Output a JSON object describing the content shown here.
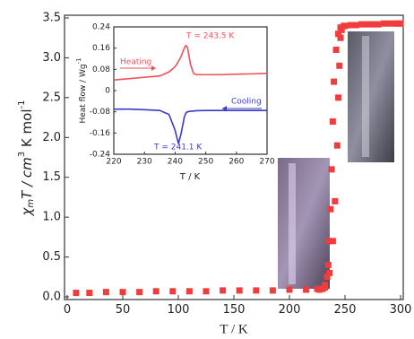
{
  "chart_data": [
    {
      "type": "scatter",
      "y_label": [
        "χ",
        "m",
        "T / cm",
        "3",
        " K mol",
        "-1"
      ],
      "x_label": "T / K",
      "xlim": [
        0,
        300
      ],
      "xticks": [
        0,
        50,
        100,
        150,
        200,
        250,
        300
      ],
      "ylim": [
        0,
        3.5
      ],
      "yticks": [
        {
          "value": 0,
          "label": "0.0"
        },
        {
          "value": 0.5,
          "label": "0.5"
        },
        {
          "value": 1,
          "label": "1.0"
        },
        {
          "value": 1.5,
          "label": "1.5"
        },
        {
          "value": 2,
          "label": "2.0"
        },
        {
          "value": 2.5,
          "label": "2.5"
        },
        {
          "value": 3,
          "label": "3.0"
        },
        {
          "value": 3.5,
          "label": "3.5"
        }
      ],
      "series": [
        {
          "color": "#f03c3c",
          "x": [
            8,
            20,
            35,
            50,
            65,
            80,
            95,
            110,
            125,
            140,
            155,
            170,
            185,
            200,
            215,
            225,
            232,
            236,
            239,
            241,
            243,
            244,
            245,
            246,
            247,
            249,
            255,
            265,
            275,
            285,
            295,
            300
          ],
          "values": [
            0.05,
            0.05,
            0.06,
            0.06,
            0.06,
            0.07,
            0.07,
            0.07,
            0.07,
            0.08,
            0.08,
            0.08,
            0.08,
            0.09,
            0.09,
            0.1,
            0.12,
            0.3,
            0.7,
            1.2,
            1.9,
            2.5,
            2.9,
            3.25,
            3.35,
            3.4,
            3.41,
            3.42,
            3.42,
            3.43,
            3.43,
            3.43
          ]
        },
        {
          "color": "#f03c3c",
          "x": [
            298,
            290,
            280,
            270,
            260,
            250,
            246,
            244,
            242,
            240,
            239,
            238,
            237,
            236,
            235,
            234,
            232,
            230,
            227
          ],
          "values": [
            3.43,
            3.43,
            3.42,
            3.42,
            3.41,
            3.4,
            3.38,
            3.3,
            3.1,
            2.7,
            2.2,
            1.6,
            1.1,
            0.7,
            0.4,
            0.25,
            0.15,
            0.1,
            0.09
          ]
        }
      ]
    },
    {
      "type": "line",
      "y_label": [
        "Heat flow / Wg",
        "-1"
      ],
      "x_label": "T / K",
      "xlim": [
        220,
        270
      ],
      "xticks": [
        220,
        230,
        240,
        250,
        260,
        270
      ],
      "ylim": [
        -0.24,
        0.24
      ],
      "yticks": [
        -0.24,
        -0.16,
        -0.08,
        0,
        0.08,
        0.16,
        0.24
      ],
      "x": [
        220,
        225,
        230,
        235,
        238,
        240,
        241.1,
        242,
        243,
        243.5,
        244,
        245,
        246,
        247,
        250,
        255,
        260,
        265,
        270
      ],
      "series": [
        {
          "name": "Heating",
          "color": "#f0505a",
          "values": [
            0.04,
            0.045,
            0.05,
            0.055,
            0.07,
            0.09,
            0.11,
            0.13,
            0.16,
            0.17,
            0.165,
            0.1,
            0.065,
            0.06,
            0.06,
            0.06,
            0.062,
            0.063,
            0.065
          ]
        },
        {
          "name": "Cooling",
          "color": "#3a3ac8",
          "values": [
            -0.07,
            -0.07,
            -0.072,
            -0.075,
            -0.09,
            -0.15,
            -0.2,
            -0.16,
            -0.1,
            -0.085,
            -0.08,
            -0.078,
            -0.077,
            -0.076,
            -0.075,
            -0.075,
            -0.075,
            -0.075,
            -0.075
          ]
        }
      ],
      "annotations": [
        "T = 243.5 K",
        "T = 241.1 K"
      ]
    }
  ]
}
